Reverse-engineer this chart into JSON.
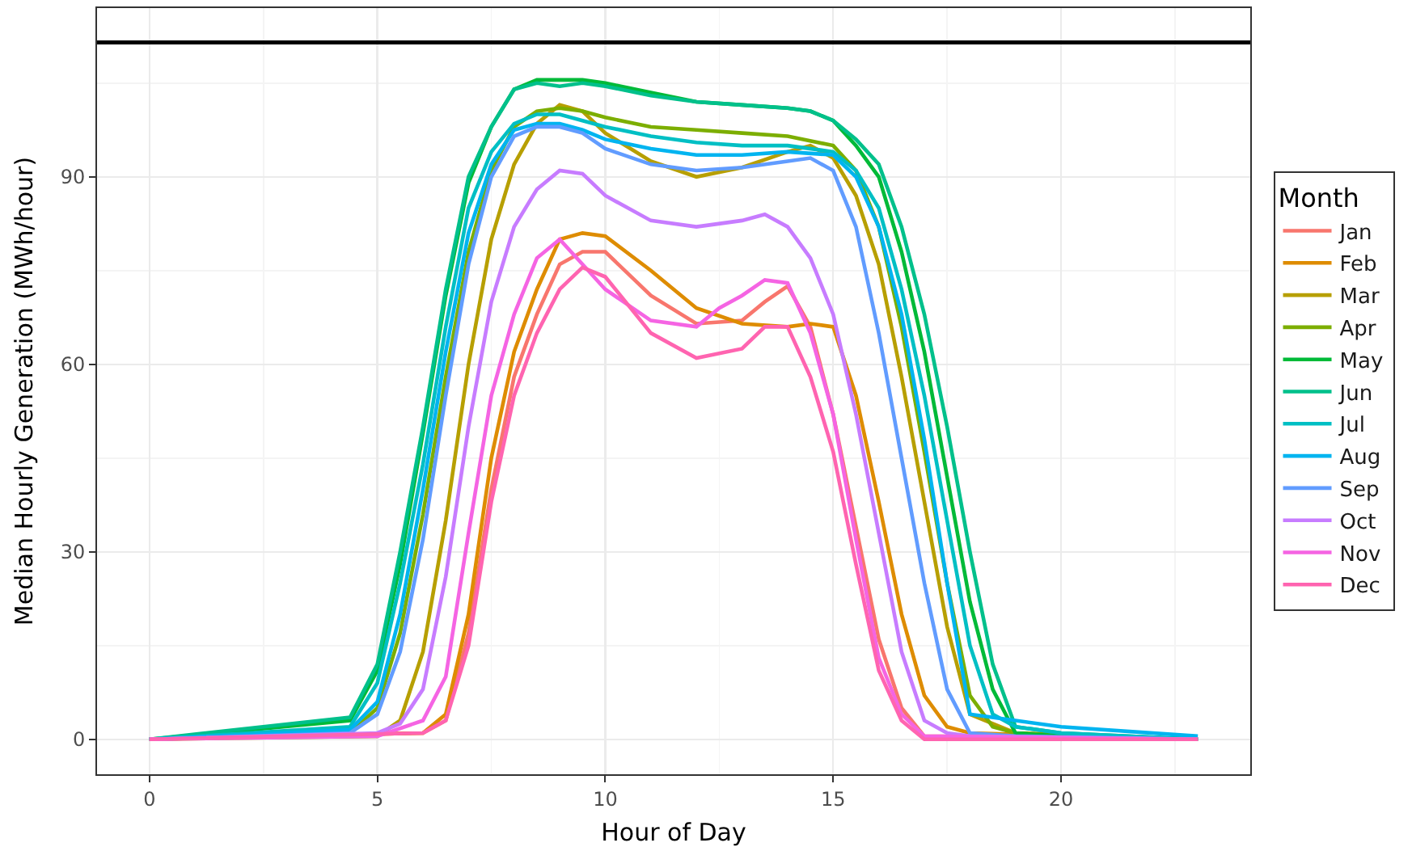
{
  "chart_data": {
    "type": "line",
    "xlabel": "Hour of Day",
    "ylabel": "Median Hourly Generation (MWh/hour)",
    "legend_title": "Month",
    "legend": "right",
    "grid": true,
    "line_style": "solid",
    "marker": "none",
    "xlim": [
      -1.15,
      24.15
    ],
    "xticks": [
      0,
      5,
      10,
      15,
      20
    ],
    "ylim": [
      -5.6,
      117
    ],
    "yticks": [
      0,
      30,
      60,
      90
    ],
    "ref_lines": [
      {
        "axis": "y",
        "value": 111.5,
        "color": "#000000"
      }
    ],
    "series": [
      {
        "name": "Jan",
        "color": "#f8766d",
        "x": [
          0,
          6,
          6.5,
          7,
          7.5,
          8,
          8.5,
          9,
          9.5,
          10,
          11,
          12,
          13,
          13.5,
          14,
          14.5,
          15,
          15.5,
          16,
          16.5,
          17,
          23
        ],
        "values": [
          0,
          1,
          3,
          17,
          40,
          58,
          68,
          76,
          78,
          78,
          71,
          66.5,
          67,
          70,
          72.5,
          66,
          52,
          34,
          16,
          5,
          0.5,
          0
        ]
      },
      {
        "name": "Feb",
        "color": "#de8c00",
        "x": [
          0,
          6,
          6.5,
          7,
          7.5,
          8,
          8.5,
          9,
          9.5,
          10,
          11,
          12,
          13,
          14,
          14.5,
          15,
          15.5,
          16,
          16.5,
          17,
          17.5,
          18,
          23
        ],
        "values": [
          0,
          1,
          4,
          20,
          45,
          62,
          72,
          80,
          81,
          80.5,
          75,
          69,
          66.5,
          66,
          66.5,
          66,
          55,
          38,
          20,
          7,
          2,
          1,
          0
        ]
      },
      {
        "name": "Mar",
        "color": "#b79f00",
        "x": [
          0,
          5,
          5.5,
          6,
          6.5,
          7,
          7.5,
          8,
          8.5,
          9,
          9.5,
          10,
          11,
          12,
          13,
          14,
          14.5,
          15,
          15.5,
          16,
          16.5,
          17,
          17.5,
          18,
          19,
          23
        ],
        "values": [
          0,
          0.5,
          3,
          14,
          35,
          60,
          80,
          92,
          98.5,
          101.5,
          100.5,
          97,
          92.5,
          90,
          91.5,
          94,
          95,
          93,
          87,
          76,
          58,
          38,
          18,
          4,
          1,
          0
        ]
      },
      {
        "name": "Apr",
        "color": "#7cae00",
        "x": [
          0,
          4.4,
          5,
          5.5,
          6,
          6.5,
          7,
          7.5,
          8,
          8.5,
          9,
          9.5,
          10,
          11,
          12,
          13,
          14,
          15,
          15.5,
          16,
          16.5,
          17,
          17.5,
          18,
          18.5,
          19,
          23
        ],
        "values": [
          0,
          1,
          5,
          17,
          36,
          58,
          78,
          91,
          98,
          100.5,
          101,
          100.5,
          99.5,
          98,
          97.5,
          97,
          96.5,
          95,
          91,
          82,
          66,
          46,
          25,
          7,
          2,
          1,
          0
        ]
      },
      {
        "name": "May",
        "color": "#00ba38",
        "x": [
          0,
          4.4,
          5,
          5.5,
          6,
          6.5,
          7,
          7.5,
          8,
          8.5,
          9,
          9.5,
          10,
          11,
          12,
          13,
          14,
          14.5,
          15,
          15.5,
          16,
          16.5,
          17,
          17.5,
          18,
          18.5,
          19,
          20,
          23
        ],
        "values": [
          0,
          3,
          11,
          28,
          49,
          71,
          89,
          98,
          104,
          105.5,
          105.5,
          105.5,
          105,
          103.5,
          102,
          101.5,
          101,
          100.5,
          99,
          95,
          90,
          78,
          62,
          42,
          22,
          8,
          1,
          0.5,
          0
        ]
      },
      {
        "name": "Jun",
        "color": "#00c08b",
        "x": [
          0,
          4.4,
          5,
          5.5,
          6,
          6.5,
          7,
          7.5,
          8,
          8.5,
          9,
          9.5,
          10,
          11,
          12,
          13,
          14,
          14.5,
          15,
          15.5,
          16,
          16.5,
          17,
          17.5,
          18,
          18.5,
          19,
          20,
          23
        ],
        "values": [
          0,
          3.5,
          12,
          30,
          50,
          72,
          90,
          98,
          104,
          105,
          104.5,
          105,
          104.5,
          103,
          102,
          101.5,
          101,
          100.5,
          99,
          96,
          92,
          82,
          68,
          50,
          30,
          12,
          2,
          1,
          0
        ]
      },
      {
        "name": "Jul",
        "color": "#00bfc4",
        "x": [
          0,
          4.4,
          5,
          5.5,
          6,
          6.5,
          7,
          7.5,
          8,
          8.5,
          9,
          9.5,
          10,
          11,
          12,
          13,
          14,
          15,
          15.5,
          16,
          16.5,
          17,
          17.5,
          18,
          18.5,
          19,
          20,
          23
        ],
        "values": [
          0,
          2,
          9,
          25,
          44,
          66,
          85,
          94,
          98.5,
          100,
          100,
          99,
          98,
          96.5,
          95.5,
          95,
          95,
          94,
          91,
          85,
          72,
          55,
          35,
          15,
          4,
          2,
          1,
          0
        ]
      },
      {
        "name": "Aug",
        "color": "#00b4f0",
        "x": [
          0,
          4.4,
          5,
          5.5,
          6,
          6.5,
          7,
          7.5,
          8,
          8.5,
          9,
          9.5,
          10,
          11,
          12,
          13,
          14,
          15,
          15.5,
          16,
          16.5,
          17,
          17.5,
          18,
          19,
          20,
          23
        ],
        "values": [
          0,
          1.5,
          6,
          20,
          40,
          62,
          81,
          92,
          97.5,
          98.5,
          98.5,
          97.5,
          96,
          94.5,
          93.5,
          93.5,
          94,
          93.5,
          90,
          82,
          68,
          48,
          25,
          4,
          3,
          2,
          0.5
        ]
      },
      {
        "name": "Sep",
        "color": "#619cff",
        "x": [
          0,
          4.4,
          5,
          5.5,
          6,
          6.5,
          7,
          7.5,
          8,
          8.5,
          9,
          9.5,
          10,
          11,
          12,
          13,
          14,
          14.5,
          15,
          15.5,
          16,
          16.5,
          17,
          17.5,
          18,
          19,
          23
        ],
        "values": [
          0,
          1,
          4,
          14,
          32,
          55,
          76,
          90,
          96.5,
          98,
          98,
          97,
          94.5,
          92,
          91,
          91.5,
          92.5,
          93,
          91,
          82,
          65,
          45,
          25,
          8,
          1,
          0.5,
          0
        ]
      },
      {
        "name": "Oct",
        "color": "#c77cff",
        "x": [
          0,
          5,
          5.5,
          6,
          6.5,
          7,
          7.5,
          8,
          8.5,
          9,
          9.5,
          10,
          11,
          12,
          13,
          13.5,
          14,
          14.5,
          15,
          15.5,
          16,
          16.5,
          17,
          17.5,
          18,
          23
        ],
        "values": [
          0,
          1,
          2.5,
          8,
          26,
          50,
          70,
          82,
          88,
          91,
          90.5,
          87,
          83,
          82,
          83,
          84,
          82,
          77,
          68,
          52,
          33,
          14,
          3,
          1,
          0.5,
          0
        ]
      },
      {
        "name": "Nov",
        "color": "#f564e3",
        "x": [
          0,
          5,
          6,
          6.5,
          7,
          7.5,
          8,
          8.5,
          9,
          9.5,
          10,
          11,
          12,
          12.5,
          13,
          13.5,
          14,
          14.5,
          15,
          15.5,
          16,
          16.5,
          17,
          23
        ],
        "values": [
          0,
          0.5,
          3,
          10,
          33,
          55,
          68,
          77,
          80,
          76,
          72,
          67,
          66,
          69,
          71,
          73.5,
          73,
          65,
          52,
          32,
          13,
          4,
          0.5,
          0
        ]
      },
      {
        "name": "Dec",
        "color": "#ff64b0",
        "x": [
          0,
          6,
          6.5,
          7,
          7.5,
          8,
          8.5,
          9,
          9.5,
          10,
          11,
          12,
          13,
          13.5,
          14,
          14.5,
          15,
          15.5,
          16,
          16.5,
          17,
          23
        ],
        "values": [
          0,
          1,
          3,
          15,
          38,
          55,
          65,
          72,
          75.5,
          74,
          65,
          61,
          62.5,
          66,
          66,
          58,
          46,
          28,
          11,
          3,
          0,
          0
        ]
      }
    ]
  }
}
